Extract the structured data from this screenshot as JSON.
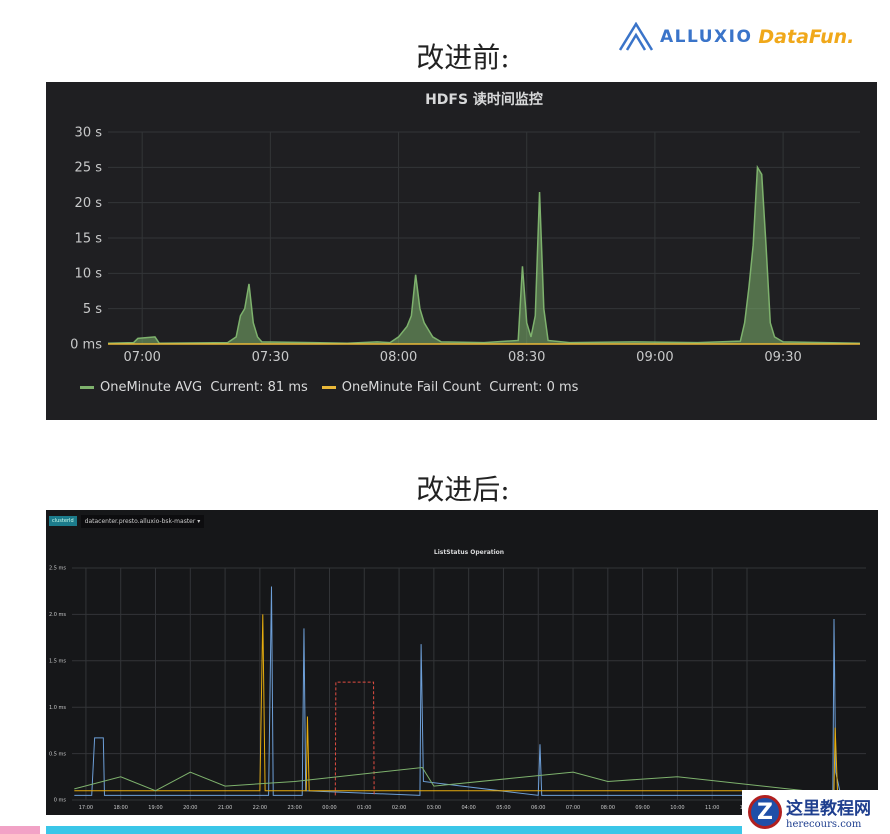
{
  "slide": {
    "title_before": "改进前:",
    "title_after": "改进后:"
  },
  "logos": {
    "alluxio": "ALLUXIO",
    "datafun": "DataFun.",
    "watermark_cn": "这里教程网",
    "watermark_url": "herecours.com"
  },
  "colors": {
    "panel_bg": "#1f1f22",
    "avg": "#7eb26d",
    "fail": "#eab839",
    "cyan_bar": "#3ac6e8"
  },
  "dashboard2": {
    "tag": "clusterId",
    "selector": "datacenter.presto.alluxio-bsk-master ▾"
  },
  "chart_data": [
    {
      "type": "area",
      "title": "HDFS 读时间监控",
      "xlabel": "",
      "ylabel": "",
      "x_ticks": [
        "07:00",
        "07:30",
        "08:00",
        "08:30",
        "09:00",
        "09:30"
      ],
      "y_ticks": [
        "0 ms",
        "5 s",
        "10 s",
        "15 s",
        "20 s",
        "25 s",
        "30 s"
      ],
      "ylim": [
        0,
        30
      ],
      "y_unit": "s",
      "xlim": [
        "06:52",
        "09:48"
      ],
      "grid": true,
      "legend": "bottom-left",
      "series": [
        {
          "name": "OneMinute AVG",
          "legend_text": "Current: 81 ms",
          "color": "#7eb26d",
          "fill": true,
          "points": [
            [
              "06:52",
              0.1
            ],
            [
              "06:58",
              0.2
            ],
            [
              "06:59",
              0.8
            ],
            [
              "07:03",
              1.0
            ],
            [
              "07:04",
              0.1
            ],
            [
              "07:20",
              0.2
            ],
            [
              "07:22",
              1
            ],
            [
              "07:23",
              4
            ],
            [
              "07:24",
              5
            ],
            [
              "07:25",
              8.5
            ],
            [
              "07:26",
              3
            ],
            [
              "07:27",
              1
            ],
            [
              "07:28",
              0.3
            ],
            [
              "07:40",
              0.2
            ],
            [
              "07:48",
              0.1
            ],
            [
              "07:55",
              0.3
            ],
            [
              "07:58",
              0.2
            ],
            [
              "08:00",
              1
            ],
            [
              "08:02",
              2.5
            ],
            [
              "08:03",
              4
            ],
            [
              "08:04",
              9.8
            ],
            [
              "08:05",
              5
            ],
            [
              "08:06",
              3
            ],
            [
              "08:07",
              2
            ],
            [
              "08:08",
              1
            ],
            [
              "08:10",
              0.3
            ],
            [
              "08:20",
              0.2
            ],
            [
              "08:28",
              0.5
            ],
            [
              "08:29",
              11
            ],
            [
              "08:30",
              3
            ],
            [
              "08:31",
              1
            ],
            [
              "08:32",
              4
            ],
            [
              "08:33",
              21.5
            ],
            [
              "08:34",
              5
            ],
            [
              "08:35",
              0.5
            ],
            [
              "08:40",
              0.2
            ],
            [
              "08:55",
              0.3
            ],
            [
              "09:10",
              0.2
            ],
            [
              "09:20",
              0.4
            ],
            [
              "09:21",
              3
            ],
            [
              "09:22",
              8
            ],
            [
              "09:23",
              14
            ],
            [
              "09:24",
              25
            ],
            [
              "09:25",
              24
            ],
            [
              "09:26",
              14
            ],
            [
              "09:27",
              3
            ],
            [
              "09:28",
              1
            ],
            [
              "09:30",
              0.3
            ],
            [
              "09:48",
              0.1
            ]
          ]
        },
        {
          "name": "OneMinute Fail Count",
          "legend_text": "Current: 0 ms",
          "color": "#eab839",
          "fill": false,
          "points": [
            [
              "06:52",
              0
            ],
            [
              "09:48",
              0
            ]
          ]
        }
      ]
    },
    {
      "type": "line",
      "title": "ListStatus Operation",
      "xlabel": "",
      "ylabel": "",
      "x_ticks": [
        "17:00",
        "18:00",
        "19:00",
        "20:00",
        "21:00",
        "22:00",
        "23:00",
        "00:00",
        "01:00",
        "02:00",
        "03:00",
        "04:00",
        "05:00",
        "06:00",
        "07:00",
        "08:00",
        "09:00",
        "10:00",
        "11:00",
        "12:00"
      ],
      "y_ticks": [
        "0 ms",
        "0.5 ms",
        "1.0 ms",
        "1.5 ms",
        "2.0 ms",
        "2.5 ms"
      ],
      "ylim": [
        0,
        2.5
      ],
      "y_unit": "ms",
      "xlim": [
        "16:36",
        "13:40"
      ],
      "grid": true,
      "series": [
        {
          "color": "#6d9fd8",
          "points": [
            [
              "16:40",
              0.05
            ],
            [
              "17:10",
              0.05
            ],
            [
              "17:15",
              0.67
            ],
            [
              "17:30",
              0.67
            ],
            [
              "17:32",
              0.05
            ],
            [
              "22:15",
              0.05
            ],
            [
              "22:20",
              2.3
            ],
            [
              "22:23",
              0.05
            ],
            [
              "23:13",
              0.05
            ],
            [
              "23:16",
              1.85
            ],
            [
              "23:19",
              0.1
            ],
            [
              "02:36",
              0.05
            ],
            [
              "02:38",
              1.68
            ],
            [
              "02:42",
              0.2
            ],
            [
              "06:00",
              0.05
            ],
            [
              "06:03",
              0.6
            ],
            [
              "06:06",
              0.05
            ],
            [
              "14:28",
              0.05
            ],
            [
              "14:30",
              1.95
            ],
            [
              "14:33",
              0.3
            ],
            [
              "14:40",
              0.1
            ]
          ]
        },
        {
          "color": "#e24d42",
          "dashed": true,
          "points": [
            [
              "00:10",
              0.05
            ],
            [
              "00:11",
              1.27
            ],
            [
              "01:16",
              1.27
            ],
            [
              "01:17",
              0.05
            ]
          ]
        },
        {
          "color": "#e5ac0e",
          "points": [
            [
              "16:40",
              0.1
            ],
            [
              "22:00",
              0.1
            ],
            [
              "22:05",
              2.0
            ],
            [
              "22:09",
              0.1
            ],
            [
              "23:20",
              0.1
            ],
            [
              "23:22",
              0.9
            ],
            [
              "23:25",
              0.1
            ],
            [
              "14:30",
              0.1
            ],
            [
              "14:32",
              0.78
            ],
            [
              "14:36",
              0.1
            ]
          ]
        },
        {
          "color": "#7eb26d",
          "points": [
            [
              "16:40",
              0.12
            ],
            [
              "18:00",
              0.25
            ],
            [
              "19:00",
              0.1
            ],
            [
              "20:00",
              0.3
            ],
            [
              "21:00",
              0.15
            ],
            [
              "23:00",
              0.2
            ],
            [
              "02:40",
              0.35
            ],
            [
              "03:00",
              0.15
            ],
            [
              "07:00",
              0.3
            ],
            [
              "08:00",
              0.2
            ],
            [
              "10:00",
              0.25
            ],
            [
              "13:40",
              0.1
            ]
          ]
        }
      ]
    }
  ]
}
